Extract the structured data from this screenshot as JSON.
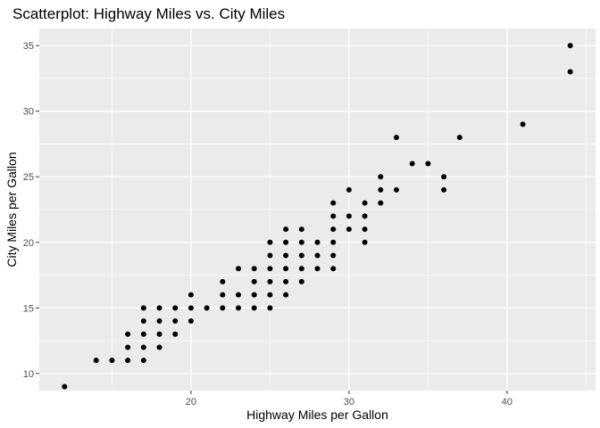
{
  "chart_data": {
    "type": "scatter",
    "title": "Scatterplot: Highway Miles vs. City Miles",
    "xlabel": "Highway Miles per Gallon",
    "ylabel": "City Miles per Gallon",
    "xlim": [
      10.4,
      45.6
    ],
    "ylim": [
      8.7,
      36.3
    ],
    "x_ticks": [
      20,
      30,
      40
    ],
    "y_ticks": [
      10,
      15,
      20,
      25,
      30,
      35
    ],
    "grid": true,
    "legend": "none",
    "colors": {
      "panel": "#ebebeb",
      "grid": "#ffffff",
      "point": "#000000",
      "tick": "#333333"
    },
    "points": [
      [
        12,
        9
      ],
      [
        14,
        11
      ],
      [
        15,
        11
      ],
      [
        16,
        11
      ],
      [
        16,
        12
      ],
      [
        16,
        13
      ],
      [
        17,
        11
      ],
      [
        17,
        12
      ],
      [
        17,
        13
      ],
      [
        17,
        14
      ],
      [
        17,
        15
      ],
      [
        18,
        12
      ],
      [
        18,
        13
      ],
      [
        18,
        14
      ],
      [
        18,
        15
      ],
      [
        19,
        13
      ],
      [
        19,
        14
      ],
      [
        19,
        15
      ],
      [
        20,
        14
      ],
      [
        20,
        15
      ],
      [
        20,
        16
      ],
      [
        21,
        15
      ],
      [
        22,
        15
      ],
      [
        22,
        16
      ],
      [
        22,
        17
      ],
      [
        23,
        15
      ],
      [
        23,
        16
      ],
      [
        23,
        18
      ],
      [
        24,
        15
      ],
      [
        24,
        16
      ],
      [
        24,
        17
      ],
      [
        24,
        18
      ],
      [
        25,
        15
      ],
      [
        25,
        16
      ],
      [
        25,
        17
      ],
      [
        25,
        18
      ],
      [
        25,
        19
      ],
      [
        25,
        20
      ],
      [
        26,
        16
      ],
      [
        26,
        17
      ],
      [
        26,
        18
      ],
      [
        26,
        19
      ],
      [
        26,
        20
      ],
      [
        26,
        21
      ],
      [
        27,
        17
      ],
      [
        27,
        18
      ],
      [
        27,
        19
      ],
      [
        27,
        20
      ],
      [
        27,
        21
      ],
      [
        28,
        18
      ],
      [
        28,
        19
      ],
      [
        28,
        20
      ],
      [
        29,
        18
      ],
      [
        29,
        19
      ],
      [
        29,
        20
      ],
      [
        29,
        21
      ],
      [
        29,
        22
      ],
      [
        29,
        23
      ],
      [
        30,
        21
      ],
      [
        30,
        22
      ],
      [
        30,
        24
      ],
      [
        31,
        20
      ],
      [
        31,
        21
      ],
      [
        31,
        22
      ],
      [
        31,
        23
      ],
      [
        32,
        23
      ],
      [
        32,
        24
      ],
      [
        32,
        25
      ],
      [
        33,
        24
      ],
      [
        33,
        28
      ],
      [
        34,
        26
      ],
      [
        35,
        26
      ],
      [
        36,
        24
      ],
      [
        36,
        25
      ],
      [
        37,
        28
      ],
      [
        41,
        29
      ],
      [
        44,
        33
      ],
      [
        44,
        35
      ]
    ]
  }
}
